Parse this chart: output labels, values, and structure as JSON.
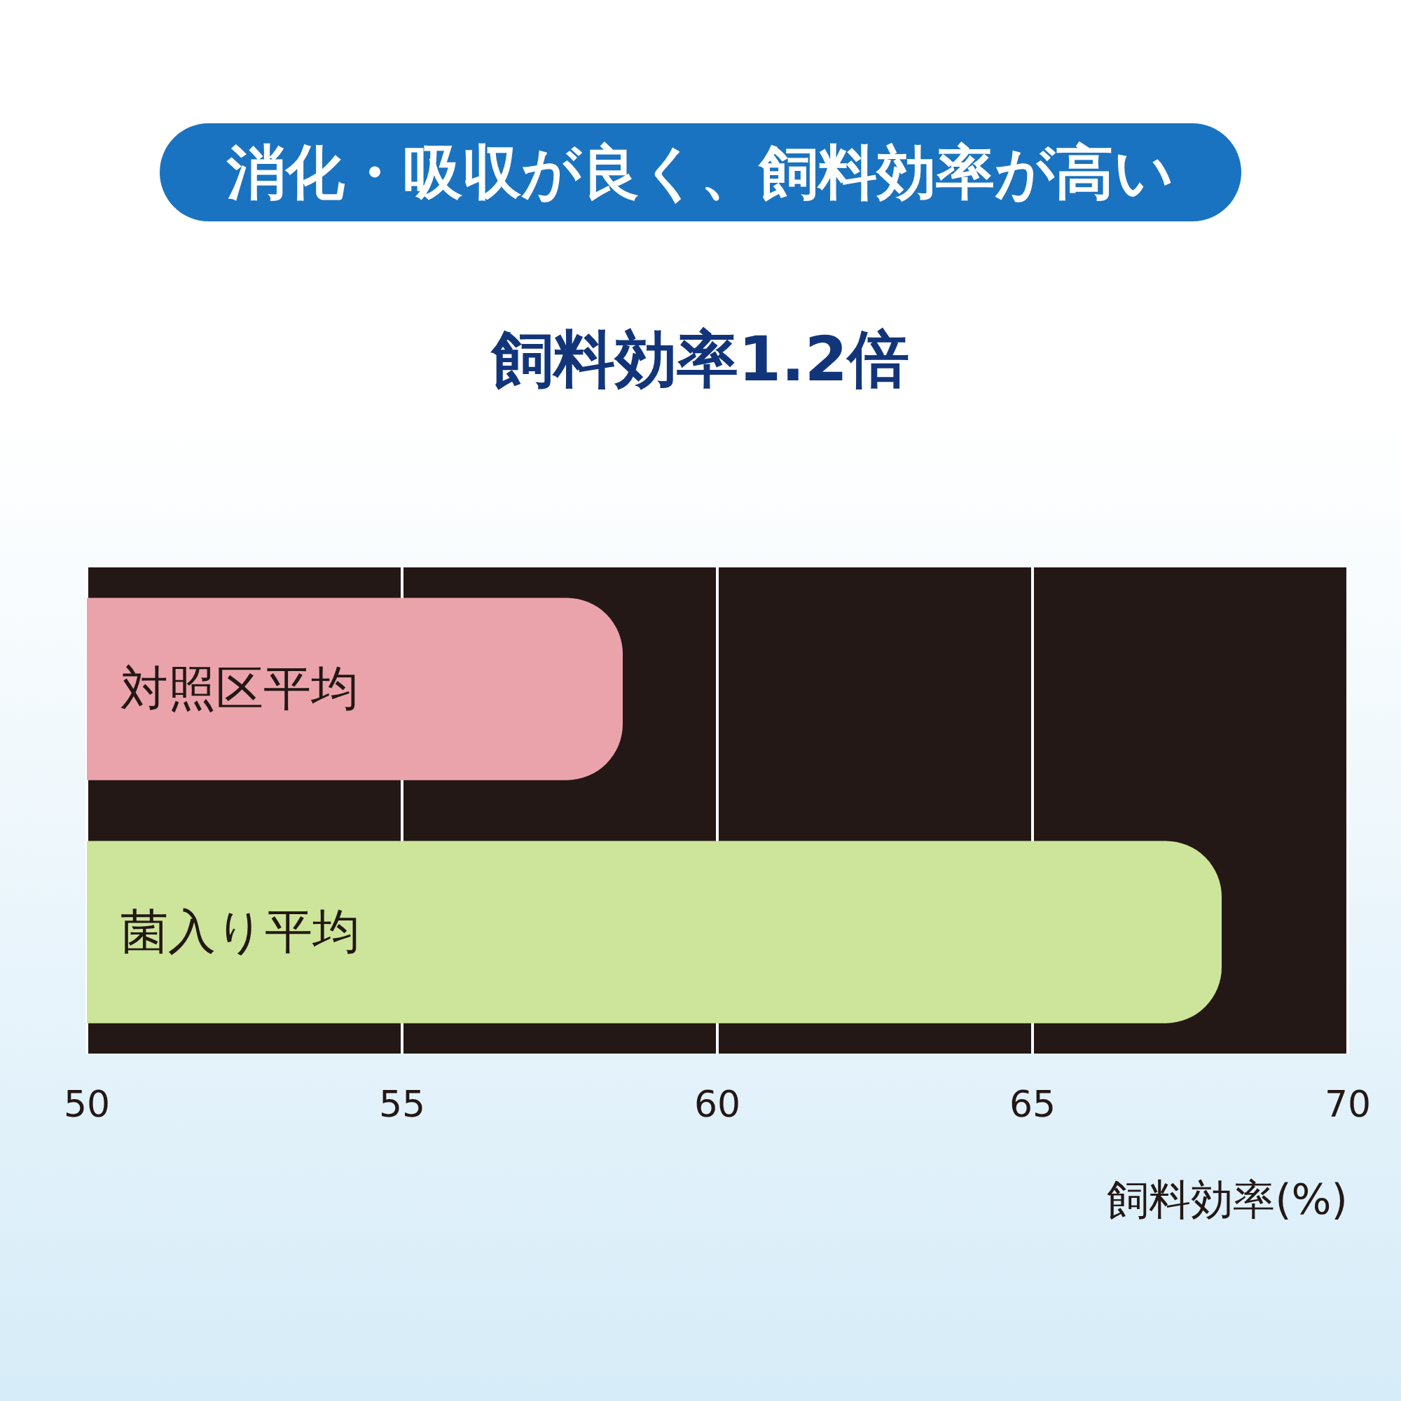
{
  "chart_data": {
    "type": "bar",
    "orientation": "horizontal",
    "title": "消化・吸収が良く、飼料効率が高い",
    "subtitle": "飼料効率1.2倍",
    "xlabel": "飼料効率(%)",
    "categories": [
      "対照区平均",
      "菌入り平均"
    ],
    "values": [
      58.5,
      68
    ],
    "colors": [
      "#eba3ab",
      "#cde59a"
    ],
    "xlim": [
      50,
      70
    ],
    "xticks": [
      50,
      55,
      60,
      65,
      70
    ],
    "grid": "x"
  }
}
